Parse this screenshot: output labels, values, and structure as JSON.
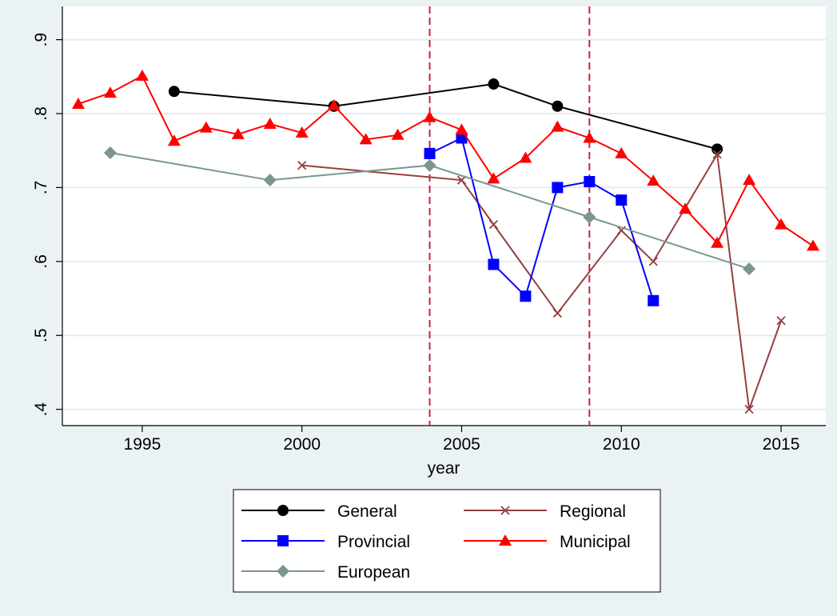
{
  "chart_data": {
    "type": "line",
    "x_label": "year",
    "xlim": [
      1992.5,
      2016.4
    ],
    "xticks": [
      1995,
      2000,
      2005,
      2010,
      2015
    ],
    "ylim": [
      0.378,
      0.945
    ],
    "yticks": [
      {
        "value": 0.4,
        "label": ".4"
      },
      {
        "value": 0.5,
        "label": ".5"
      },
      {
        "value": 0.6,
        "label": ".6"
      },
      {
        "value": 0.7,
        "label": ".7"
      },
      {
        "value": 0.8,
        "label": ".8"
      },
      {
        "value": 0.9,
        "label": ".9"
      }
    ],
    "grid": true,
    "vlines": [
      2004,
      2009
    ],
    "vline_color": "#c0263d",
    "legend_position": "bottom",
    "series": [
      {
        "name": "General",
        "color": "#000000",
        "marker": "circle",
        "x": [
          1996,
          2001,
          2006,
          2008,
          2013
        ],
        "values": [
          0.83,
          0.81,
          0.84,
          0.81,
          0.752
        ]
      },
      {
        "name": "Regional",
        "color": "#94403f",
        "marker": "x",
        "x": [
          2000,
          2005,
          2006,
          2008,
          2010,
          2011,
          2013,
          2014,
          2015
        ],
        "values": [
          0.73,
          0.71,
          0.65,
          0.53,
          0.642,
          0.6,
          0.745,
          0.4,
          0.52
        ]
      },
      {
        "name": "Provincial",
        "color": "#0000ff",
        "marker": "square",
        "x": [
          2004,
          2005,
          2006,
          2007,
          2008,
          2009,
          2010,
          2011
        ],
        "values": [
          0.746,
          0.767,
          0.596,
          0.553,
          0.7,
          0.708,
          0.683,
          0.547
        ]
      },
      {
        "name": "Municipal",
        "color": "#ff0000",
        "marker": "triangle",
        "x": [
          1993,
          1994,
          1995,
          1996,
          1997,
          1998,
          1999,
          2000,
          2001,
          2002,
          2003,
          2004,
          2005,
          2006,
          2007,
          2008,
          2009,
          2010,
          2011,
          2012,
          2013,
          2014,
          2015,
          2016
        ],
        "values": [
          0.813,
          0.828,
          0.851,
          0.763,
          0.781,
          0.772,
          0.786,
          0.774,
          0.811,
          0.765,
          0.771,
          0.795,
          0.778,
          0.712,
          0.74,
          0.782,
          0.767,
          0.746,
          0.709,
          0.671,
          0.625,
          0.71,
          0.65,
          0.621
        ]
      },
      {
        "name": "European",
        "color": "#7a968f",
        "marker": "diamond",
        "x": [
          1994,
          1999,
          2004,
          2009,
          2014
        ],
        "values": [
          0.747,
          0.71,
          0.73,
          0.66,
          0.59
        ]
      }
    ]
  }
}
